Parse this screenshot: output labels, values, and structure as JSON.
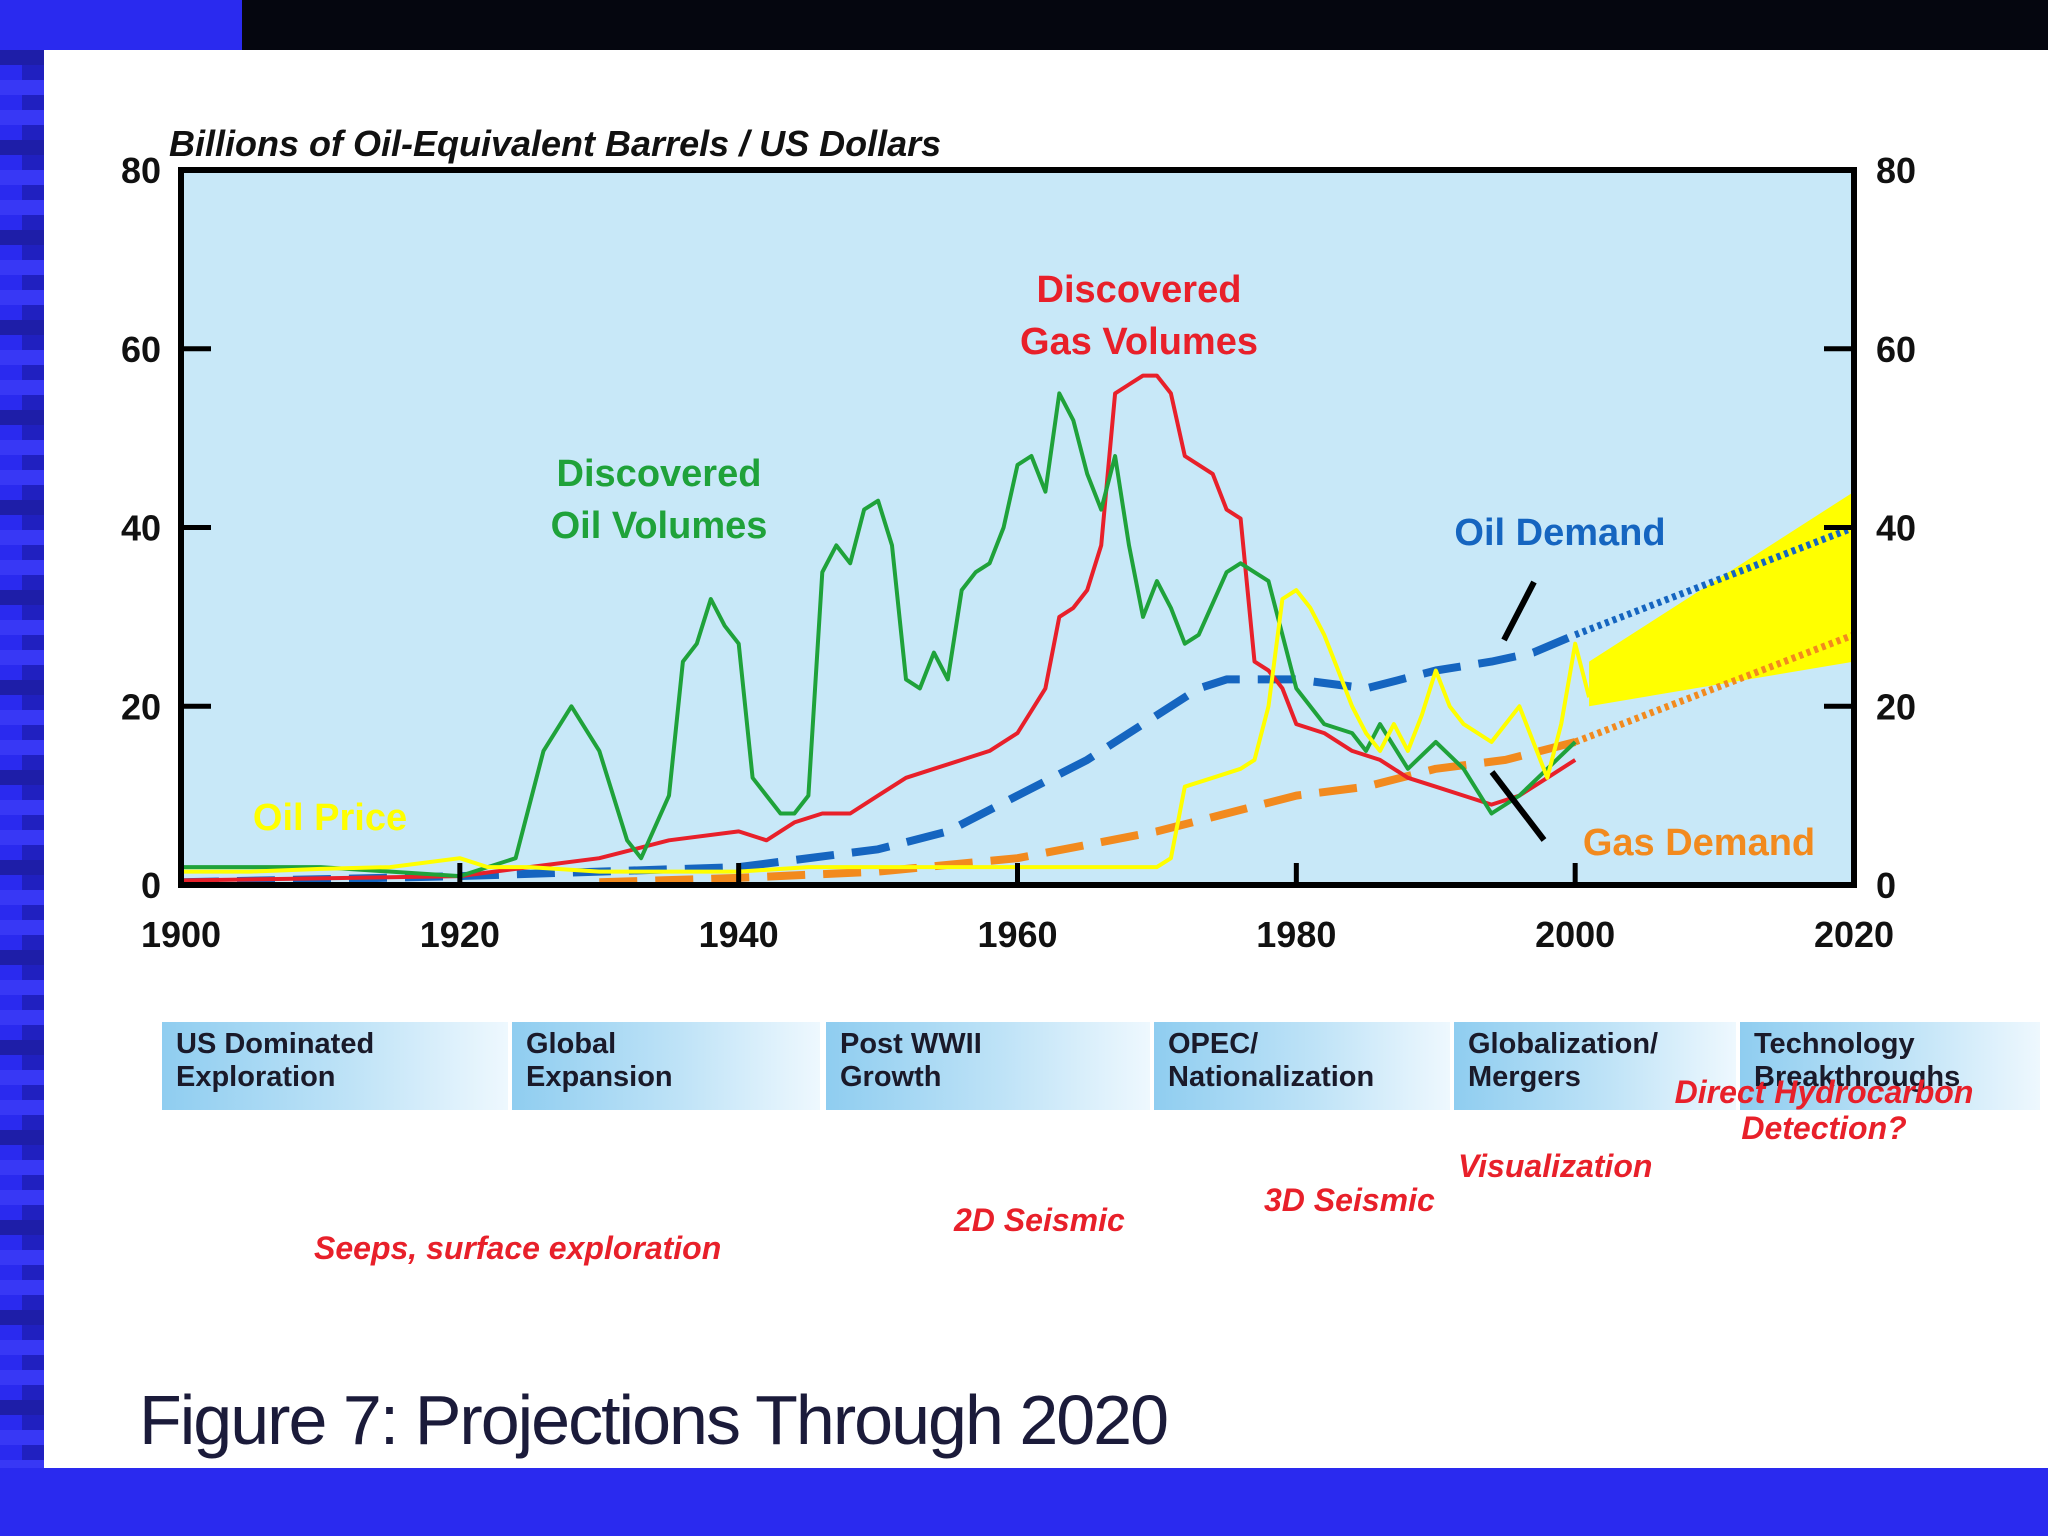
{
  "title": "Billions of Oil-Equivalent Barrels / US Dollars",
  "caption": "Figure 7: Projections Through 2020",
  "colors": {
    "plot_bg": "#c8e8f8",
    "oil_volumes": "#1fa23a",
    "gas_volumes": "#e8202a",
    "oil_price": "#ffff00",
    "oil_demand": "#1565c0",
    "gas_demand": "#f28a1e",
    "era_text": "#1a1a2a",
    "tech_text": "#e8202a"
  },
  "eras": [
    {
      "label": "US Dominated\nExploration"
    },
    {
      "label": "Global\nExpansion"
    },
    {
      "label": "Post WWII\nGrowth"
    },
    {
      "label": "OPEC/\nNationalization"
    },
    {
      "label": "Globalization/\nMergers"
    },
    {
      "label": "Technology\nBreakthroughs"
    }
  ],
  "technologies": [
    {
      "label": "Seeps, surface exploration"
    },
    {
      "label": "2D Seismic"
    },
    {
      "label": "3D Seismic"
    },
    {
      "label": "Visualization"
    },
    {
      "label": "Direct Hydrocarbon\nDetection?"
    }
  ],
  "chart_data": {
    "type": "line",
    "title": "",
    "ylabel": "Billions of Oil-Equivalent Barrels / US Dollars",
    "xlim": [
      1900,
      2020
    ],
    "ylim": [
      0,
      80
    ],
    "x_ticks": [
      1900,
      1920,
      1940,
      1960,
      1980,
      2000,
      2020
    ],
    "y_ticks": [
      0,
      20,
      40,
      60,
      80
    ],
    "y_ticks_right": [
      0,
      20,
      40,
      60,
      80
    ],
    "grid": false,
    "legend": "inline labels",
    "series": [
      {
        "name": "Discovered Oil Volumes",
        "style": "solid",
        "label_lines": [
          "Discovered",
          "Oil Volumes"
        ],
        "points": [
          [
            1900,
            2
          ],
          [
            1910,
            2
          ],
          [
            1920,
            1
          ],
          [
            1924,
            3
          ],
          [
            1926,
            15
          ],
          [
            1928,
            20
          ],
          [
            1930,
            15
          ],
          [
            1932,
            5
          ],
          [
            1933,
            3
          ],
          [
            1935,
            10
          ],
          [
            1936,
            25
          ],
          [
            1937,
            27
          ],
          [
            1938,
            32
          ],
          [
            1939,
            29
          ],
          [
            1940,
            27
          ],
          [
            1941,
            12
          ],
          [
            1942,
            10
          ],
          [
            1943,
            8
          ],
          [
            1944,
            8
          ],
          [
            1945,
            10
          ],
          [
            1946,
            35
          ],
          [
            1947,
            38
          ],
          [
            1948,
            36
          ],
          [
            1949,
            42
          ],
          [
            1950,
            43
          ],
          [
            1951,
            38
          ],
          [
            1952,
            23
          ],
          [
            1953,
            22
          ],
          [
            1954,
            26
          ],
          [
            1955,
            23
          ],
          [
            1956,
            33
          ],
          [
            1957,
            35
          ],
          [
            1958,
            36
          ],
          [
            1959,
            40
          ],
          [
            1960,
            47
          ],
          [
            1961,
            48
          ],
          [
            1962,
            44
          ],
          [
            1963,
            55
          ],
          [
            1964,
            52
          ],
          [
            1965,
            46
          ],
          [
            1966,
            42
          ],
          [
            1967,
            48
          ],
          [
            1968,
            38
          ],
          [
            1969,
            30
          ],
          [
            1970,
            34
          ],
          [
            1971,
            31
          ],
          [
            1972,
            27
          ],
          [
            1973,
            28
          ],
          [
            1975,
            35
          ],
          [
            1976,
            36
          ],
          [
            1977,
            35
          ],
          [
            1978,
            34
          ],
          [
            1979,
            28
          ],
          [
            1980,
            22
          ],
          [
            1982,
            18
          ],
          [
            1984,
            17
          ],
          [
            1985,
            15
          ],
          [
            1986,
            18
          ],
          [
            1988,
            13
          ],
          [
            1990,
            16
          ],
          [
            1992,
            13
          ],
          [
            1994,
            8
          ],
          [
            1996,
            10
          ],
          [
            1998,
            13
          ],
          [
            2000,
            16
          ]
        ]
      },
      {
        "name": "Discovered Gas Volumes",
        "style": "solid",
        "label_lines": [
          "Discovered",
          "Gas Volumes"
        ],
        "points": [
          [
            1900,
            0.5
          ],
          [
            1920,
            1
          ],
          [
            1925,
            2
          ],
          [
            1930,
            3
          ],
          [
            1935,
            5
          ],
          [
            1940,
            6
          ],
          [
            1942,
            5
          ],
          [
            1944,
            7
          ],
          [
            1946,
            8
          ],
          [
            1948,
            8
          ],
          [
            1950,
            10
          ],
          [
            1952,
            12
          ],
          [
            1954,
            13
          ],
          [
            1956,
            14
          ],
          [
            1958,
            15
          ],
          [
            1960,
            17
          ],
          [
            1962,
            22
          ],
          [
            1963,
            30
          ],
          [
            1964,
            31
          ],
          [
            1965,
            33
          ],
          [
            1966,
            38
          ],
          [
            1967,
            55
          ],
          [
            1968,
            56
          ],
          [
            1969,
            57
          ],
          [
            1970,
            57
          ],
          [
            1971,
            55
          ],
          [
            1972,
            48
          ],
          [
            1973,
            47
          ],
          [
            1974,
            46
          ],
          [
            1975,
            42
          ],
          [
            1976,
            41
          ],
          [
            1977,
            25
          ],
          [
            1978,
            24
          ],
          [
            1979,
            22
          ],
          [
            1980,
            18
          ],
          [
            1982,
            17
          ],
          [
            1984,
            15
          ],
          [
            1986,
            14
          ],
          [
            1988,
            12
          ],
          [
            1990,
            11
          ],
          [
            1992,
            10
          ],
          [
            1994,
            9
          ],
          [
            1996,
            10
          ],
          [
            1998,
            12
          ],
          [
            2000,
            14
          ]
        ]
      },
      {
        "name": "Oil Price",
        "style": "solid",
        "label_lines": [
          "Oil Price"
        ],
        "points": [
          [
            1900,
            1.5
          ],
          [
            1905,
            1.5
          ],
          [
            1910,
            1.8
          ],
          [
            1915,
            2
          ],
          [
            1920,
            3
          ],
          [
            1922,
            2
          ],
          [
            1925,
            2
          ],
          [
            1930,
            1.5
          ],
          [
            1935,
            1.5
          ],
          [
            1940,
            1.5
          ],
          [
            1945,
            2
          ],
          [
            1950,
            2
          ],
          [
            1955,
            2
          ],
          [
            1960,
            2
          ],
          [
            1965,
            2
          ],
          [
            1970,
            2
          ],
          [
            1971,
            3
          ],
          [
            1972,
            11
          ],
          [
            1974,
            12
          ],
          [
            1976,
            13
          ],
          [
            1977,
            14
          ],
          [
            1978,
            20
          ],
          [
            1979,
            32
          ],
          [
            1980,
            33
          ],
          [
            1981,
            31
          ],
          [
            1982,
            28
          ],
          [
            1983,
            24
          ],
          [
            1984,
            20
          ],
          [
            1985,
            17
          ],
          [
            1986,
            15
          ],
          [
            1987,
            18
          ],
          [
            1988,
            15
          ],
          [
            1989,
            19
          ],
          [
            1990,
            24
          ],
          [
            1991,
            20
          ],
          [
            1992,
            18
          ],
          [
            1993,
            17
          ],
          [
            1994,
            16
          ],
          [
            1995,
            18
          ],
          [
            1996,
            20
          ],
          [
            1997,
            16
          ],
          [
            1998,
            12
          ],
          [
            1999,
            18
          ],
          [
            2000,
            27
          ],
          [
            2001,
            21
          ]
        ]
      },
      {
        "name": "Oil Demand",
        "style": "dashed",
        "label_lines": [
          "Oil Demand"
        ],
        "points": [
          [
            1900,
            0.3
          ],
          [
            1920,
            1
          ],
          [
            1930,
            1.5
          ],
          [
            1940,
            2
          ],
          [
            1950,
            4
          ],
          [
            1955,
            6
          ],
          [
            1960,
            10
          ],
          [
            1965,
            14
          ],
          [
            1970,
            19
          ],
          [
            1973,
            22
          ],
          [
            1975,
            23
          ],
          [
            1980,
            23
          ],
          [
            1985,
            22
          ],
          [
            1990,
            24
          ],
          [
            1994,
            25
          ],
          [
            1997,
            26
          ],
          [
            2000,
            28
          ]
        ]
      },
      {
        "name": "Oil Demand projection",
        "style": "dotted",
        "points": [
          [
            2000,
            28
          ],
          [
            2010,
            34
          ],
          [
            2020,
            40
          ]
        ]
      },
      {
        "name": "Gas Demand",
        "style": "dashed",
        "label_lines": [
          "Gas Demand"
        ],
        "points": [
          [
            1930,
            0.3
          ],
          [
            1940,
            0.8
          ],
          [
            1950,
            1.5
          ],
          [
            1960,
            3
          ],
          [
            1965,
            4.5
          ],
          [
            1970,
            6
          ],
          [
            1975,
            8
          ],
          [
            1980,
            10
          ],
          [
            1985,
            11
          ],
          [
            1990,
            13
          ],
          [
            1995,
            14
          ],
          [
            2000,
            16
          ]
        ]
      },
      {
        "name": "Gas Demand projection",
        "style": "dotted",
        "points": [
          [
            2000,
            16
          ],
          [
            2010,
            22
          ],
          [
            2020,
            28
          ]
        ]
      }
    ],
    "band": {
      "name": "Oil Price projection range",
      "x": [
        2001,
        2020
      ],
      "upper": [
        25,
        44
      ],
      "lower": [
        20,
        25
      ]
    }
  }
}
